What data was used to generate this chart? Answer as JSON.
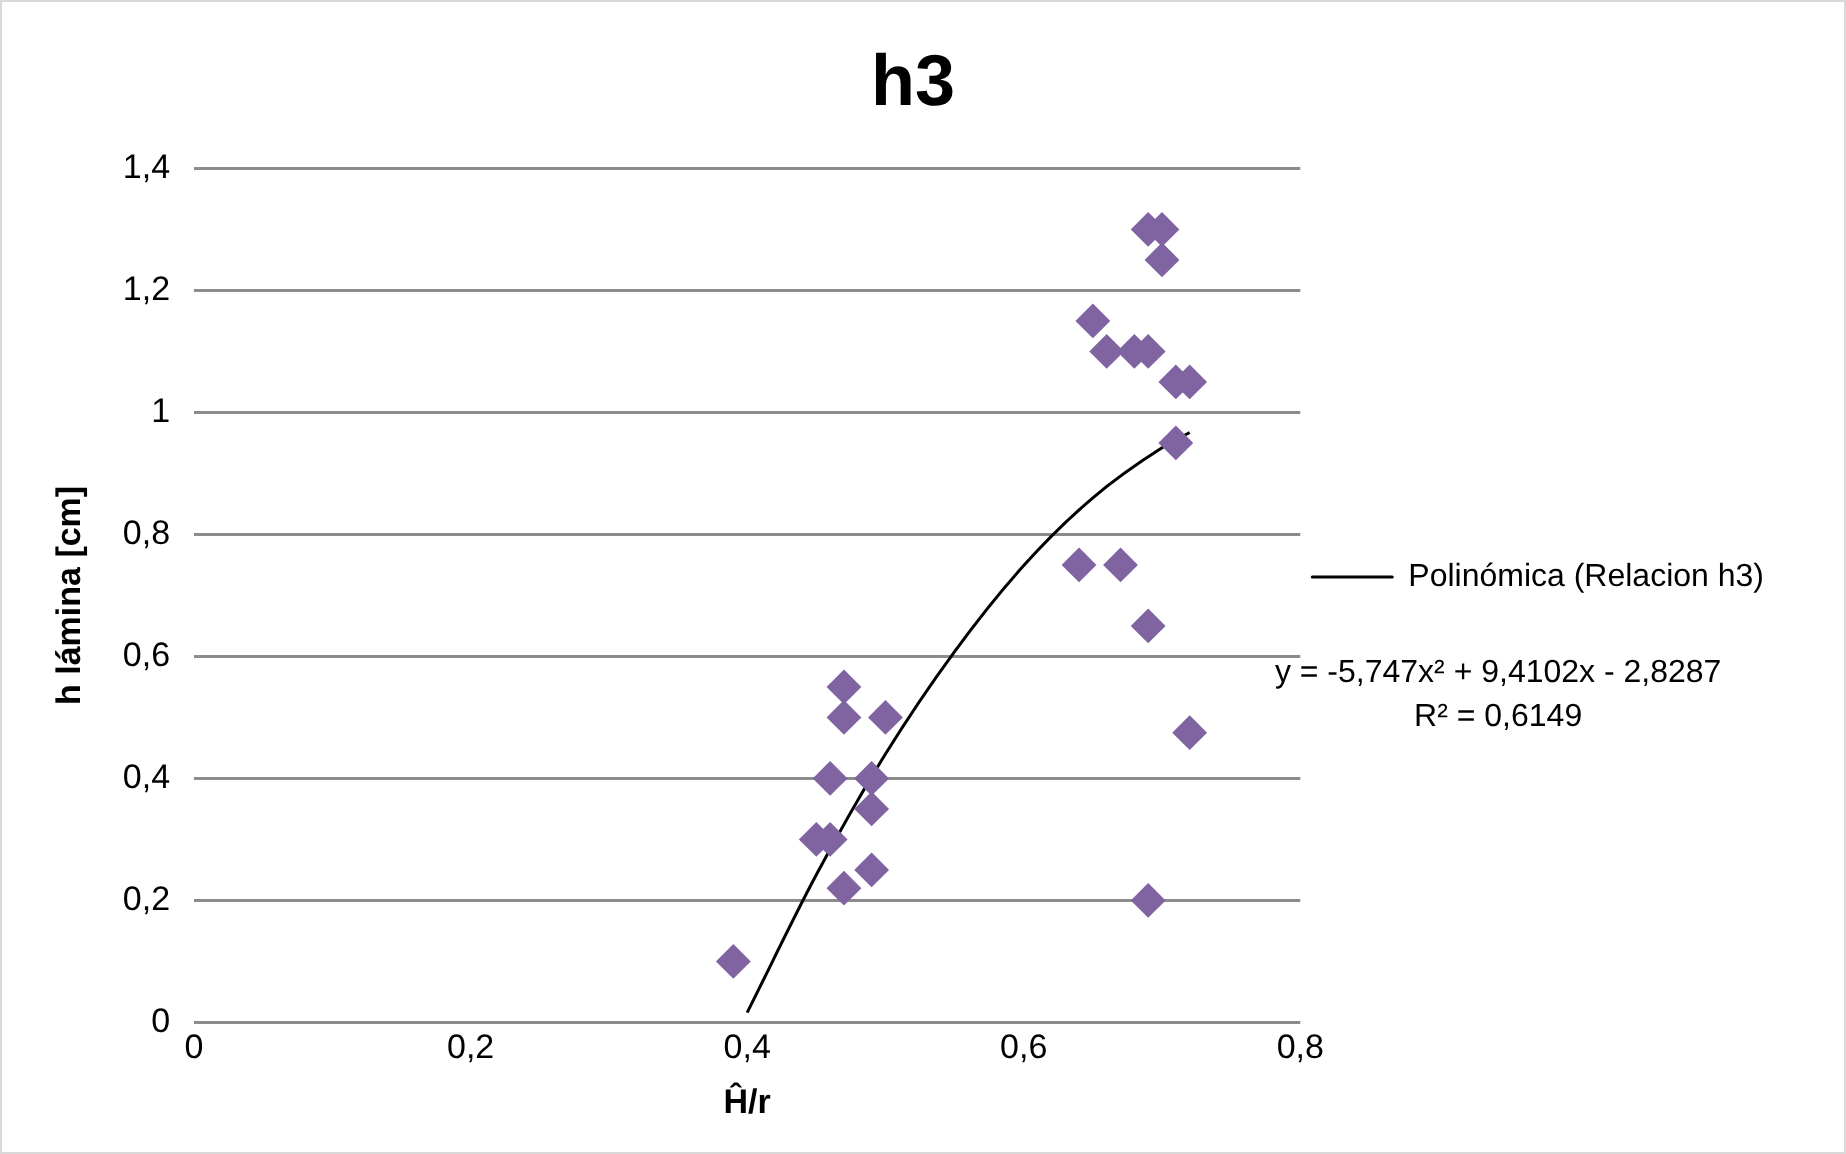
{
  "chart_data": {
    "type": "scatter",
    "title": "h3",
    "xlabel": "Ĥ/r",
    "ylabel": "h lámina [cm]",
    "xlim": [
      0,
      0.8
    ],
    "xticks": [
      0,
      {
        "value": 0.2,
        "label": "0,2"
      },
      {
        "value": 0.4,
        "label": "0,4"
      },
      {
        "value": 0.6,
        "label": "0,6"
      },
      {
        "value": 0.8,
        "label": "0,8"
      }
    ],
    "ylim": [
      0,
      1.4
    ],
    "yticks": [
      0,
      {
        "value": 0.2,
        "label": "0,2"
      },
      {
        "value": 0.4,
        "label": "0,4"
      },
      {
        "value": 0.6,
        "label": "0,6"
      },
      {
        "value": 0.8,
        "label": "0,8"
      },
      1,
      {
        "value": 1.2,
        "label": "1,2"
      },
      {
        "value": 1.4,
        "label": "1,4"
      }
    ],
    "grid": "y",
    "legend": "right",
    "marker": "diamond",
    "series": [
      {
        "color": "#8064a2",
        "x": [
          0.39,
          0.45,
          0.46,
          0.46,
          0.47,
          0.47,
          0.49,
          0.49,
          0.5,
          0.49,
          0.47,
          0.69,
          0.69,
          0.7,
          0.7,
          0.65,
          0.66,
          0.68,
          0.69,
          0.71,
          0.72,
          0.71,
          0.64,
          0.67,
          0.69,
          0.72
        ],
        "values": [
          0.1,
          0.3,
          0.3,
          0.4,
          0.55,
          0.5,
          0.35,
          0.4,
          0.5,
          0.25,
          0.22,
          0.2,
          1.3,
          1.3,
          1.25,
          1.15,
          1.1,
          1.1,
          1.1,
          1.05,
          1.05,
          0.95,
          0.75,
          0.75,
          0.65,
          0.475
        ]
      },
      {
        "type": "line",
        "name": "Polinómica (Relacion h3)",
        "color": "#000000",
        "marker": "none",
        "x": [
          0.4,
          0.45,
          0.5,
          0.55,
          0.6,
          0.65,
          0.7,
          0.72
        ],
        "values": [
          0.016,
          0.242,
          0.44,
          0.608,
          0.749,
          0.86,
          0.942,
          0.967
        ]
      }
    ],
    "annotations": [
      "y = -5,747x² + 9,4102x - 2,8287",
      "R² = 0,6149"
    ]
  }
}
